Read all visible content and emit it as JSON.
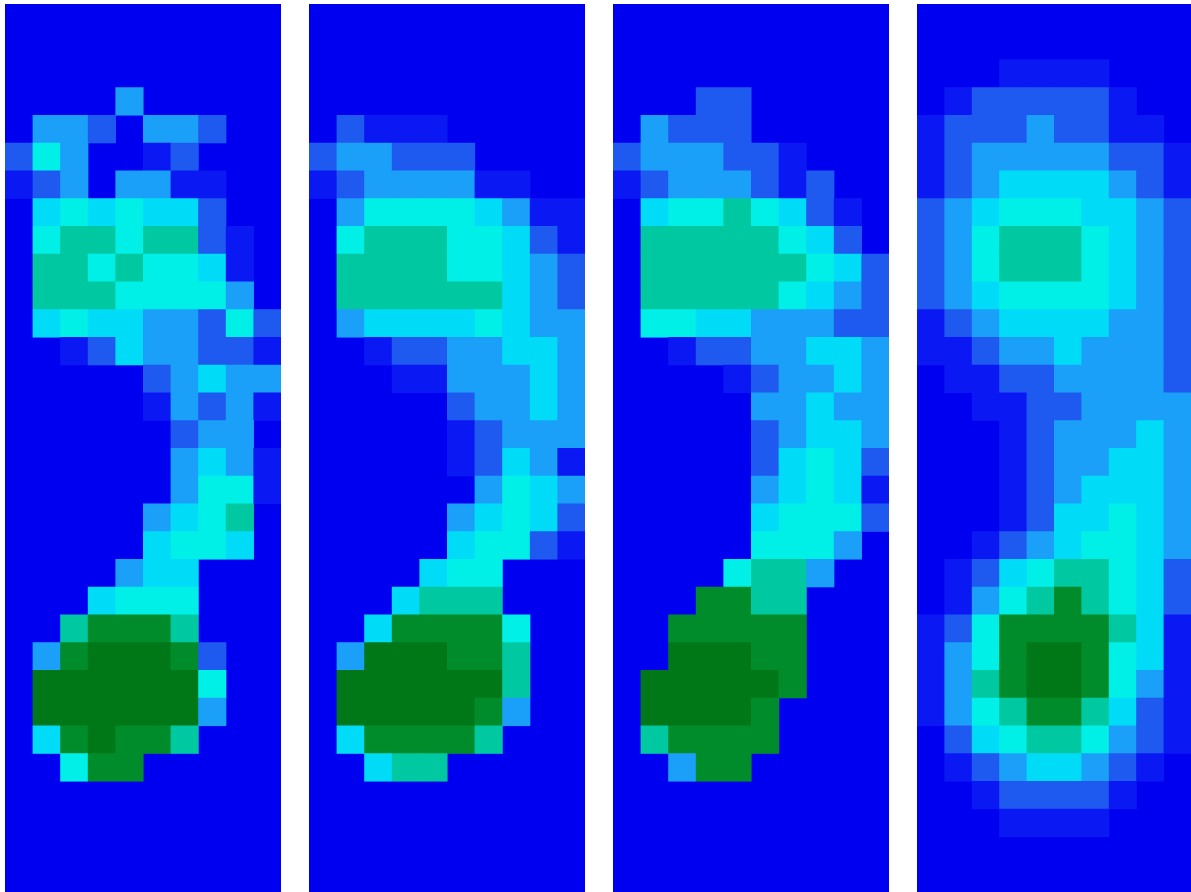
{
  "figure": {
    "type": "pressure-heatmap-panels",
    "panel_count": 4,
    "grid": {
      "columns": 10,
      "rows": 32
    },
    "colors": {
      "background_low": "#0000f0",
      "low": "#0a18f4",
      "mid_low": "#1e5af0",
      "mid": "#1aa0f8",
      "mid_high": "#00dcf8",
      "high": "#00f0e8",
      "higher": "#00c8a0",
      "peak": "#008c2a",
      "peak_max": "#007818"
    },
    "panels": [
      {
        "id": "panel-1",
        "variant": "sharp"
      },
      {
        "id": "panel-2",
        "variant": "sharp"
      },
      {
        "id": "panel-3",
        "variant": "sharp"
      },
      {
        "id": "panel-4",
        "variant": "smooth"
      }
    ]
  }
}
